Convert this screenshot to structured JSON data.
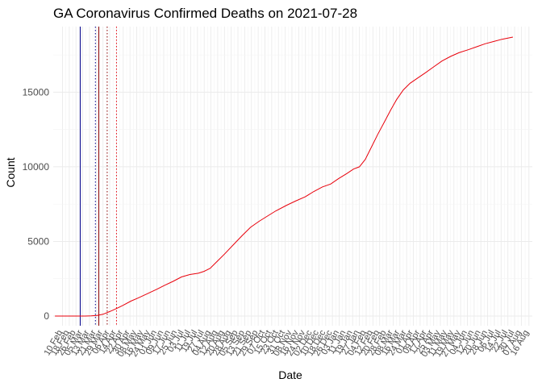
{
  "chart_data": {
    "type": "line",
    "title": "GA Coronavirus Confirmed Deaths on 2021-07-28",
    "xlabel": "Date",
    "ylabel": "Count",
    "y_ticks": [
      0,
      5000,
      10000,
      15000
    ],
    "ylim": [
      -650,
      19400
    ],
    "xlim": [
      "2020-01-30",
      "2021-08-20"
    ],
    "x_ticks": [
      "10 Feb",
      "18 Feb",
      "26 Feb",
      "05 Mar",
      "13 Mar",
      "21 Mar",
      "29 Mar",
      "06 Apr",
      "14 Apr",
      "22 Apr",
      "30 Apr",
      "08 May",
      "16 May",
      "24 May",
      "01 Jun",
      "09 Jun",
      "17 Jun",
      "25 Jun",
      "03 Jul",
      "11 Jul",
      "19 Jul",
      "27 Jul",
      "04 Aug",
      "12 Aug",
      "20 Aug",
      "28 Aug",
      "05 Sep",
      "13 Sep",
      "21 Sep",
      "29 Sep",
      "07 Oct",
      "15 Oct",
      "23 Oct",
      "31 Oct",
      "08 Nov",
      "16 Nov",
      "24 Nov",
      "02 Dec",
      "10 Dec",
      "18 Dec",
      "26 Dec",
      "03 Jan",
      "11 Jan",
      "19 Jan",
      "27 Jan",
      "04 Feb",
      "12 Feb",
      "20 Feb",
      "28 Feb",
      "08 Mar",
      "16 Mar",
      "24 Mar",
      "01 Apr",
      "09 Apr",
      "17 Apr",
      "25 Apr",
      "03 May",
      "11 May",
      "19 May",
      "27 May",
      "04 Jun",
      "12 Jun",
      "20 Jun",
      "28 Jun",
      "06 Jul",
      "14 Jul",
      "22 Jul",
      "30 Jul",
      "07 Aug",
      "16 Aug"
    ],
    "x_tick_dates": [
      "2020-02-10",
      "2020-02-18",
      "2020-02-26",
      "2020-03-05",
      "2020-03-13",
      "2020-03-21",
      "2020-03-29",
      "2020-04-06",
      "2020-04-14",
      "2020-04-22",
      "2020-04-30",
      "2020-05-08",
      "2020-05-16",
      "2020-05-24",
      "2020-06-01",
      "2020-06-09",
      "2020-06-17",
      "2020-06-25",
      "2020-07-03",
      "2020-07-11",
      "2020-07-19",
      "2020-07-27",
      "2020-08-04",
      "2020-08-12",
      "2020-08-20",
      "2020-08-28",
      "2020-09-05",
      "2020-09-13",
      "2020-09-21",
      "2020-09-29",
      "2020-10-07",
      "2020-10-15",
      "2020-10-23",
      "2020-10-31",
      "2020-11-08",
      "2020-11-16",
      "2020-11-24",
      "2020-12-02",
      "2020-12-10",
      "2020-12-18",
      "2020-12-26",
      "2021-01-03",
      "2021-01-11",
      "2021-01-19",
      "2021-01-27",
      "2021-02-04",
      "2021-02-12",
      "2021-02-20",
      "2021-02-28",
      "2021-03-08",
      "2021-03-16",
      "2021-03-24",
      "2021-04-01",
      "2021-04-09",
      "2021-04-17",
      "2021-04-25",
      "2021-05-03",
      "2021-05-11",
      "2021-05-19",
      "2021-05-27",
      "2021-06-04",
      "2021-06-12",
      "2021-06-20",
      "2021-06-28",
      "2021-07-06",
      "2021-07-14",
      "2021-07-22",
      "2021-07-30",
      "2021-08-07",
      "2021-08-16"
    ],
    "series": [
      {
        "color": "#e8000b",
        "points": [
          [
            "2020-02-01",
            0
          ],
          [
            "2020-02-20",
            0
          ],
          [
            "2020-03-08",
            0
          ],
          [
            "2020-03-15",
            10
          ],
          [
            "2020-03-22",
            40
          ],
          [
            "2020-03-29",
            120
          ],
          [
            "2020-04-06",
            300
          ],
          [
            "2020-04-14",
            500
          ],
          [
            "2020-04-22",
            720
          ],
          [
            "2020-05-01",
            1000
          ],
          [
            "2020-05-10",
            1220
          ],
          [
            "2020-05-20",
            1480
          ],
          [
            "2020-06-01",
            1800
          ],
          [
            "2020-06-10",
            2060
          ],
          [
            "2020-06-20",
            2320
          ],
          [
            "2020-06-30",
            2620
          ],
          [
            "2020-07-10",
            2780
          ],
          [
            "2020-07-20",
            2870
          ],
          [
            "2020-07-27",
            3000
          ],
          [
            "2020-08-03",
            3200
          ],
          [
            "2020-08-12",
            3700
          ],
          [
            "2020-08-20",
            4150
          ],
          [
            "2020-08-30",
            4750
          ],
          [
            "2020-09-10",
            5400
          ],
          [
            "2020-09-20",
            5950
          ],
          [
            "2020-09-30",
            6350
          ],
          [
            "2020-10-10",
            6700
          ],
          [
            "2020-10-20",
            7050
          ],
          [
            "2020-11-01",
            7400
          ],
          [
            "2020-11-12",
            7700
          ],
          [
            "2020-11-24",
            8000
          ],
          [
            "2020-12-04",
            8350
          ],
          [
            "2020-12-14",
            8650
          ],
          [
            "2020-12-24",
            8850
          ],
          [
            "2021-01-02",
            9200
          ],
          [
            "2021-01-12",
            9550
          ],
          [
            "2021-01-20",
            9850
          ],
          [
            "2021-01-27",
            10000
          ],
          [
            "2021-02-03",
            10500
          ],
          [
            "2021-02-10",
            11300
          ],
          [
            "2021-02-18",
            12200
          ],
          [
            "2021-02-26",
            13050
          ],
          [
            "2021-03-05",
            13800
          ],
          [
            "2021-03-12",
            14500
          ],
          [
            "2021-03-20",
            15150
          ],
          [
            "2021-03-28",
            15600
          ],
          [
            "2021-04-06",
            15950
          ],
          [
            "2021-04-15",
            16300
          ],
          [
            "2021-04-25",
            16700
          ],
          [
            "2021-05-05",
            17100
          ],
          [
            "2021-05-15",
            17400
          ],
          [
            "2021-05-25",
            17650
          ],
          [
            "2021-06-05",
            17850
          ],
          [
            "2021-06-15",
            18050
          ],
          [
            "2021-06-25",
            18250
          ],
          [
            "2021-07-05",
            18400
          ],
          [
            "2021-07-15",
            18550
          ],
          [
            "2021-07-28",
            18700
          ]
        ]
      }
    ],
    "vertical_lines": [
      {
        "date": "2020-03-02",
        "color": "#00008b",
        "style": "solid"
      },
      {
        "date": "2020-03-20",
        "color": "#00008b",
        "style": "dotted"
      },
      {
        "date": "2020-03-24",
        "color": "#8b0000",
        "style": "solid"
      },
      {
        "date": "2020-04-03",
        "color": "#8b0000",
        "style": "dotted"
      },
      {
        "date": "2020-04-14",
        "color": "#e8000b",
        "style": "dotted"
      }
    ],
    "grid": true,
    "legend": "none"
  }
}
